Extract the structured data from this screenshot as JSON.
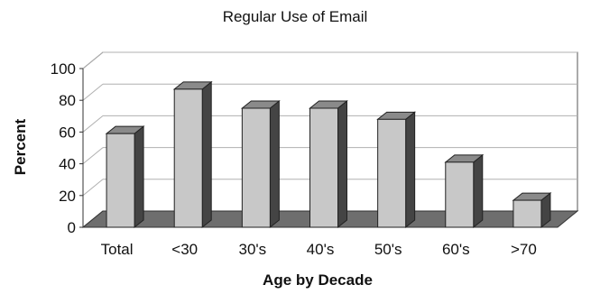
{
  "chart_data": {
    "type": "bar",
    "title": "Regular Use of Email",
    "xlabel": "Age by Decade",
    "ylabel": "Percent",
    "categories": [
      "Total",
      "<30",
      "30's",
      "40's",
      "50's",
      "60's",
      ">70"
    ],
    "values": [
      59,
      87,
      75,
      75,
      68,
      41,
      17
    ],
    "ylim": [
      0,
      100
    ],
    "yticks": [
      0,
      20,
      40,
      60,
      80,
      100
    ],
    "grid": true,
    "legend": "none",
    "style": "3d",
    "colors": {
      "bar_front": "#c8c8c8",
      "bar_side": "#444444",
      "bar_top": "#8a8a8a",
      "floor": "#6e6e6e",
      "wall_line": "#555555"
    }
  }
}
